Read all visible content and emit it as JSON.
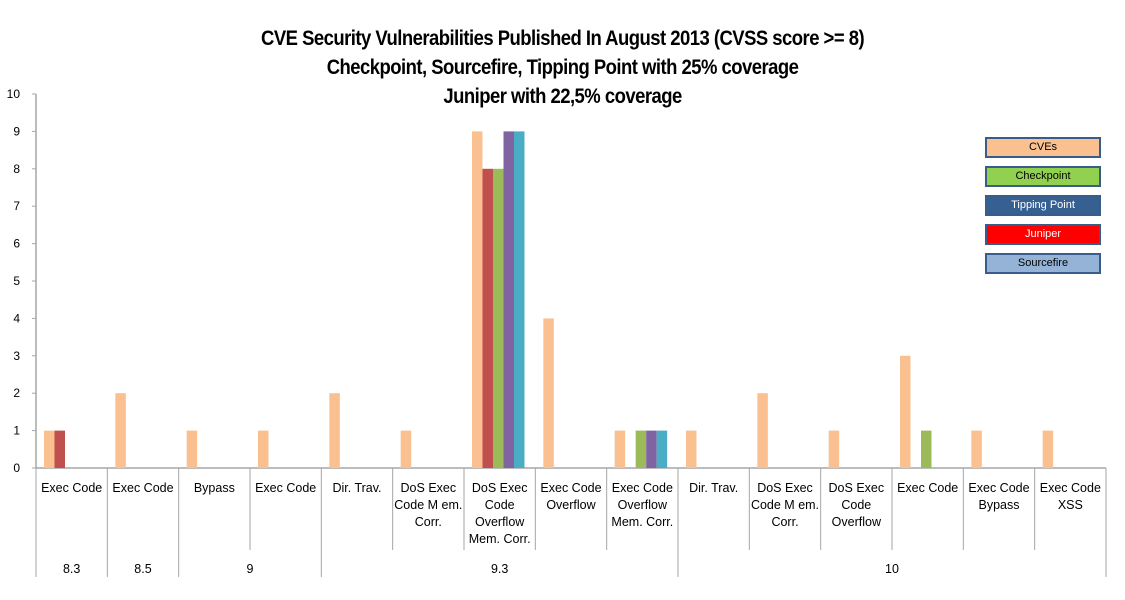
{
  "chart_data": {
    "type": "bar",
    "title": [
      "CVE Security Vulnerabilities Published In August 2013 (CVSS score >= 8)",
      "Checkpoint, Sourcefire, Tipping Point with 25% coverage",
      "Juniper with 22,5% coverage"
    ],
    "xlabel": "",
    "ylabel": "",
    "ylim": [
      0,
      10
    ],
    "yticks": [
      "0",
      "1",
      "2",
      "3",
      "4",
      "5",
      "6",
      "7",
      "8",
      "9",
      "10"
    ],
    "grid": false,
    "legend_position": "right",
    "categories": [
      [
        "Exec Code"
      ],
      [
        "Exec Code"
      ],
      [
        "Bypass"
      ],
      [
        "Exec Code"
      ],
      [
        "Dir. Trav."
      ],
      [
        "DoS Exec",
        "Code M em.",
        "Corr."
      ],
      [
        "DoS Exec",
        "Code",
        "Overflow",
        "Mem. Corr."
      ],
      [
        "Exec Code",
        "Overflow"
      ],
      [
        "Exec Code",
        "Overflow",
        "Mem. Corr."
      ],
      [
        "Dir. Trav."
      ],
      [
        "DoS Exec",
        "Code M em.",
        "Corr."
      ],
      [
        "DoS Exec",
        "Code",
        "Overflow"
      ],
      [
        "Exec Code"
      ],
      [
        "Exec Code",
        "Bypass"
      ],
      [
        "Exec Code",
        "XSS"
      ]
    ],
    "groups": [
      {
        "label": "8.3",
        "span": 1
      },
      {
        "label": "8.5",
        "span": 1
      },
      {
        "label": "9",
        "span": 2
      },
      {
        "label": "9.3",
        "span": 5
      },
      {
        "label": "10",
        "span": 6
      }
    ],
    "series": [
      {
        "name": "CVEs",
        "color": "#FAC090",
        "values": [
          1,
          2,
          1,
          1,
          2,
          1,
          9,
          4,
          1,
          1,
          2,
          1,
          3,
          1,
          1
        ]
      },
      {
        "name": "Juniper",
        "color": "#C0504D",
        "values": [
          1,
          0,
          0,
          0,
          0,
          0,
          8,
          0,
          0,
          0,
          0,
          0,
          0,
          0,
          0
        ]
      },
      {
        "name": "Checkpoint",
        "color": "#9BBB59",
        "values": [
          0,
          0,
          0,
          0,
          0,
          0,
          8,
          0,
          1,
          0,
          0,
          0,
          1,
          0,
          0
        ]
      },
      {
        "name": "Tipping Point",
        "color": "#8064A2",
        "values": [
          0,
          0,
          0,
          0,
          0,
          0,
          9,
          0,
          1,
          0,
          0,
          0,
          0,
          0,
          0
        ]
      },
      {
        "name": "Sourcefire",
        "color": "#4BACC6",
        "values": [
          0,
          0,
          0,
          0,
          0,
          0,
          9,
          0,
          1,
          0,
          0,
          0,
          0,
          0,
          0
        ]
      }
    ],
    "legend": [
      {
        "label": "CVEs",
        "fill": "#FAC090",
        "text_color": "#000000"
      },
      {
        "label": "Checkpoint",
        "fill": "#92D050",
        "text_color": "#000000"
      },
      {
        "label": "Tipping Point",
        "fill": "#376092",
        "text_color": "#FFFFFF"
      },
      {
        "label": "Juniper",
        "fill": "#FF0000",
        "text_color": "#FFFFFF"
      },
      {
        "label": "Sourcefire",
        "fill": "#95B3D7",
        "text_color": "#000000"
      }
    ]
  }
}
